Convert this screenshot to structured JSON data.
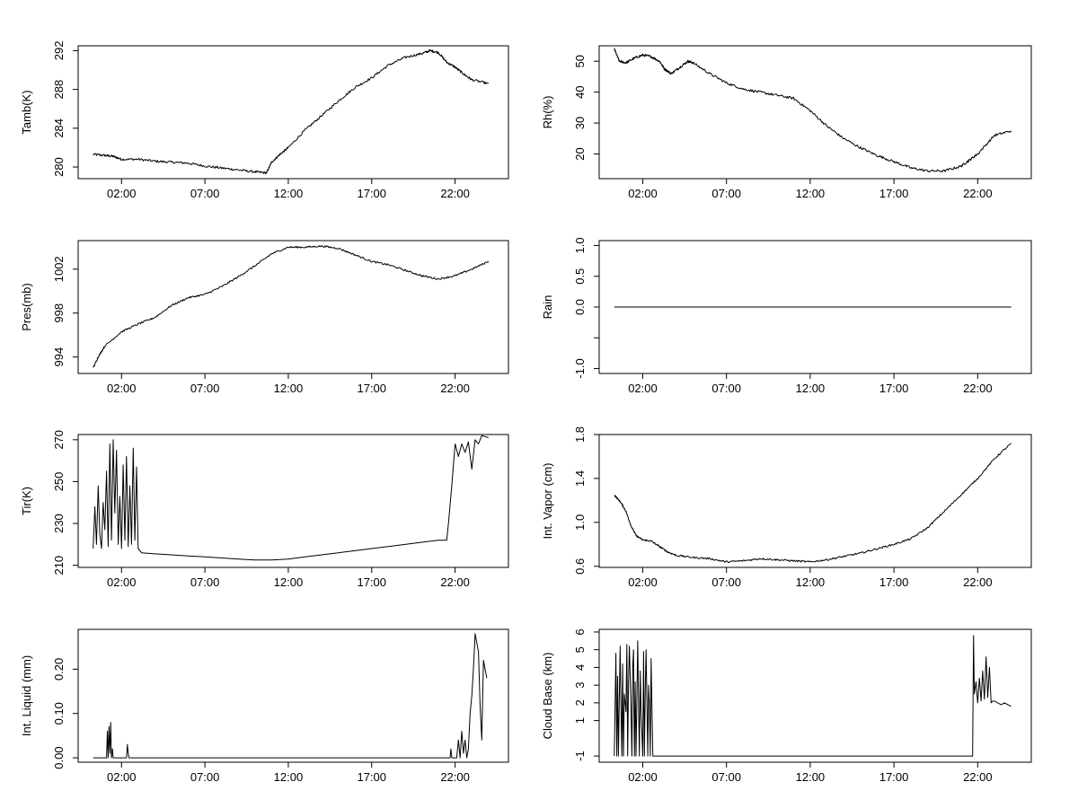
{
  "chart_data": [
    {
      "type": "line",
      "id": "tamb",
      "ylabel": "Tamb(K)",
      "xlim": [
        -0.6,
        25.2
      ],
      "ylim": [
        278.8,
        292.5
      ],
      "xticks": [
        2,
        7,
        12,
        17,
        22
      ],
      "xtick_labels": [
        "02:00",
        "07:00",
        "12:00",
        "17:00",
        "22:00"
      ],
      "yticks": [
        280,
        284,
        288,
        292
      ],
      "ytick_labels": [
        "280",
        "284",
        "288",
        "292"
      ],
      "x": [
        0.3,
        1.0,
        1.5,
        2.0,
        3.0,
        4.0,
        5.0,
        6.0,
        7.0,
        8.0,
        9.0,
        10.0,
        10.7,
        11.0,
        11.5,
        12.0,
        13.0,
        14.0,
        15.0,
        16.0,
        17.0,
        18.0,
        19.0,
        20.0,
        20.5,
        21.0,
        21.5,
        22.0,
        22.5,
        23.0,
        24.0
      ],
      "y": [
        281.3,
        281.2,
        281.1,
        280.8,
        280.8,
        280.6,
        280.5,
        280.4,
        280.1,
        279.9,
        279.7,
        279.5,
        279.4,
        280.5,
        281.3,
        282.0,
        283.8,
        285.3,
        286.8,
        288.2,
        289.2,
        290.5,
        291.3,
        291.7,
        292.0,
        291.8,
        290.8,
        290.3,
        289.6,
        289.0,
        288.6
      ],
      "noise": 0.12
    },
    {
      "type": "line",
      "id": "rh",
      "ylabel": "Rh(%)",
      "xlim": [
        -0.6,
        25.2
      ],
      "ylim": [
        12.0,
        55.0
      ],
      "xticks": [
        2,
        7,
        12,
        17,
        22
      ],
      "xtick_labels": [
        "02:00",
        "07:00",
        "12:00",
        "17:00",
        "22:00"
      ],
      "yticks": [
        20,
        30,
        40,
        50
      ],
      "ytick_labels": [
        "20",
        "30",
        "40",
        "50"
      ],
      "x": [
        0.3,
        0.6,
        1.0,
        1.5,
        2.0,
        2.5,
        3.0,
        3.3,
        3.7,
        4.2,
        4.7,
        5.0,
        6.0,
        7.0,
        8.0,
        9.0,
        10.0,
        11.0,
        12.0,
        13.0,
        14.0,
        15.0,
        16.0,
        17.0,
        18.0,
        19.0,
        20.0,
        21.0,
        21.5,
        22.0,
        23.0,
        24.0
      ],
      "y": [
        54.0,
        50.0,
        49.5,
        51.0,
        52.0,
        51.5,
        50.0,
        47.5,
        46.0,
        48.0,
        50.0,
        49.5,
        46.0,
        43.0,
        41.0,
        40.0,
        39.0,
        38.0,
        34.0,
        29.0,
        25.0,
        22.0,
        19.5,
        17.5,
        15.5,
        14.5,
        14.5,
        16.0,
        18.0,
        20.0,
        26.0,
        27.5
      ],
      "noise": 0.4
    },
    {
      "type": "line",
      "id": "pres",
      "ylabel": "Pres(mb)",
      "xlim": [
        -0.6,
        25.2
      ],
      "ylim": [
        992.5,
        1004.6
      ],
      "xticks": [
        2,
        7,
        12,
        17,
        22
      ],
      "xtick_labels": [
        "02:00",
        "07:00",
        "12:00",
        "17:00",
        "22:00"
      ],
      "yticks": [
        994,
        998,
        1002
      ],
      "ytick_labels": [
        "994",
        "998",
        "1002"
      ],
      "x": [
        0.3,
        0.6,
        1.0,
        2.0,
        3.0,
        4.0,
        5.0,
        6.0,
        7.0,
        8.0,
        9.0,
        10.0,
        11.0,
        12.0,
        13.0,
        14.0,
        15.0,
        16.0,
        17.0,
        18.0,
        19.0,
        20.0,
        21.0,
        22.0,
        23.0,
        24.0
      ],
      "y": [
        993.0,
        994.0,
        995.0,
        996.3,
        997.0,
        997.6,
        998.7,
        999.4,
        999.7,
        1000.4,
        1001.3,
        1002.3,
        1003.4,
        1004.0,
        1004.0,
        1004.1,
        1003.9,
        1003.3,
        1002.7,
        1002.4,
        1001.9,
        1001.4,
        1001.1,
        1001.4,
        1002.0,
        1002.7
      ],
      "noise": 0.08
    },
    {
      "type": "line",
      "id": "rain",
      "ylabel": "Rain",
      "xlim": [
        -0.6,
        25.2
      ],
      "ylim": [
        -1.08,
        1.08
      ],
      "xticks": [
        2,
        7,
        12,
        17,
        22
      ],
      "xtick_labels": [
        "02:00",
        "07:00",
        "12:00",
        "17:00",
        "22:00"
      ],
      "yticks": [
        -1.0,
        -0.5,
        0.0,
        0.5,
        1.0
      ],
      "ytick_labels": [
        "-1.0",
        "",
        "0.0",
        "0.5",
        "1.0"
      ],
      "x": [
        0.3,
        24.0
      ],
      "y": [
        0.0,
        0.0
      ],
      "noise": 0
    },
    {
      "type": "line",
      "id": "tir",
      "ylabel": "Tir(K)",
      "xlim": [
        -0.6,
        25.2
      ],
      "ylim": [
        209.0,
        272.5
      ],
      "xticks": [
        2,
        7,
        12,
        17,
        22
      ],
      "xtick_labels": [
        "02:00",
        "07:00",
        "12:00",
        "17:00",
        "22:00"
      ],
      "yticks": [
        210,
        230,
        250,
        270
      ],
      "ytick_labels": [
        "210",
        "230",
        "250",
        "270"
      ],
      "x": [
        0.3,
        0.4,
        0.5,
        0.6,
        0.7,
        0.8,
        0.9,
        1.0,
        1.1,
        1.2,
        1.3,
        1.4,
        1.5,
        1.6,
        1.7,
        1.8,
        1.9,
        2.0,
        2.1,
        2.2,
        2.3,
        2.4,
        2.5,
        2.6,
        2.7,
        2.8,
        2.9,
        3.0,
        3.2,
        4.0,
        5.0,
        6.0,
        7.0,
        8.0,
        9.0,
        10.0,
        11.0,
        12.0,
        13.0,
        14.0,
        15.0,
        16.0,
        17.0,
        18.0,
        19.0,
        20.0,
        21.0,
        21.5,
        21.6,
        21.8,
        22.0,
        22.2,
        22.4,
        22.6,
        22.8,
        23.0,
        23.2,
        23.4,
        23.6,
        24.0
      ],
      "y": [
        218,
        238,
        220,
        248,
        225,
        218,
        240,
        227,
        255,
        219,
        268,
        222,
        270,
        235,
        265,
        220,
        243,
        218,
        258,
        222,
        262,
        219,
        248,
        220,
        266,
        222,
        257,
        218,
        216,
        215.5,
        215,
        214.5,
        214,
        213.5,
        213,
        212.5,
        212.5,
        213,
        214,
        215,
        216,
        217,
        218,
        219,
        220,
        221,
        222,
        222,
        230,
        248,
        268,
        262,
        268,
        264,
        269,
        256,
        270,
        268,
        272,
        271
      ],
      "noise": 0
    },
    {
      "type": "line",
      "id": "vapor",
      "ylabel": "Int. Vapor (cm)",
      "xlim": [
        -0.6,
        25.2
      ],
      "ylim": [
        0.59,
        1.8
      ],
      "xticks": [
        2,
        7,
        12,
        17,
        22
      ],
      "xtick_labels": [
        "02:00",
        "07:00",
        "12:00",
        "17:00",
        "22:00"
      ],
      "yticks": [
        0.6,
        1.0,
        1.4,
        1.8
      ],
      "ytick_labels": [
        "0.6",
        "1.0",
        "1.4",
        "1.8"
      ],
      "x": [
        0.3,
        0.7,
        1.0,
        1.3,
        1.6,
        2.0,
        2.5,
        3.0,
        3.5,
        4.0,
        5.0,
        6.0,
        7.0,
        8.0,
        9.0,
        10.0,
        11.0,
        12.0,
        13.0,
        14.0,
        15.0,
        16.0,
        17.0,
        18.0,
        19.0,
        20.0,
        21.0,
        22.0,
        23.0,
        24.0
      ],
      "y": [
        1.25,
        1.18,
        1.1,
        0.97,
        0.88,
        0.84,
        0.83,
        0.78,
        0.73,
        0.7,
        0.68,
        0.67,
        0.64,
        0.65,
        0.67,
        0.66,
        0.65,
        0.64,
        0.66,
        0.69,
        0.72,
        0.76,
        0.8,
        0.85,
        0.95,
        1.1,
        1.25,
        1.4,
        1.58,
        1.72
      ],
      "noise": 0.008
    },
    {
      "type": "line",
      "id": "liquid",
      "ylabel": "Int. Liquid (mm)",
      "xlim": [
        -0.6,
        25.2
      ],
      "ylim": [
        -0.01,
        0.29
      ],
      "xticks": [
        2,
        7,
        12,
        17,
        22
      ],
      "xtick_labels": [
        "02:00",
        "07:00",
        "12:00",
        "17:00",
        "22:00"
      ],
      "yticks": [
        0.0,
        0.1,
        0.2
      ],
      "ytick_labels": [
        "0.00",
        "0.10",
        "0.20"
      ],
      "x": [
        0.3,
        1.1,
        1.15,
        1.2,
        1.25,
        1.3,
        1.35,
        1.4,
        1.45,
        1.5,
        1.6,
        2.3,
        2.35,
        2.4,
        2.45,
        21.7,
        21.75,
        21.8,
        22.1,
        22.2,
        22.3,
        22.4,
        22.5,
        22.6,
        22.7,
        22.8,
        22.9,
        23.0,
        23.1,
        23.2,
        23.3,
        23.4,
        23.5,
        23.6,
        23.7,
        23.8,
        23.9
      ],
      "y": [
        0.0,
        0.0,
        0.06,
        0.0,
        0.07,
        0.01,
        0.08,
        0.0,
        0.02,
        0.0,
        0.0,
        0.0,
        0.03,
        0.01,
        0.0,
        0.0,
        0.02,
        0.0,
        0.0,
        0.04,
        0.0,
        0.06,
        0.01,
        0.04,
        0.0,
        0.02,
        0.1,
        0.14,
        0.2,
        0.28,
        0.26,
        0.24,
        0.12,
        0.04,
        0.22,
        0.2,
        0.18
      ],
      "noise": 0
    },
    {
      "type": "line",
      "id": "cloud",
      "ylabel": "Cloud Base (km)",
      "xlim": [
        -0.6,
        25.2
      ],
      "ylim": [
        -1.35,
        6.15
      ],
      "xticks": [
        2,
        7,
        12,
        17,
        22
      ],
      "xtick_labels": [
        "02:00",
        "07:00",
        "12:00",
        "17:00",
        "22:00"
      ],
      "yticks": [
        -1,
        1,
        2,
        3,
        4,
        5,
        6
      ],
      "ytick_labels": [
        "-1",
        "1",
        "2",
        "3",
        "4",
        "5",
        "6"
      ],
      "x": [
        0.3,
        0.35,
        0.4,
        0.45,
        0.5,
        0.55,
        0.65,
        0.7,
        0.75,
        0.8,
        0.85,
        0.9,
        1.0,
        1.05,
        1.1,
        1.15,
        1.2,
        1.3,
        1.35,
        1.4,
        1.45,
        1.5,
        1.55,
        1.6,
        1.7,
        1.75,
        1.8,
        1.85,
        1.9,
        2.0,
        2.05,
        2.1,
        2.15,
        2.2,
        2.3,
        2.35,
        2.4,
        2.45,
        2.5,
        2.55,
        2.6,
        2.65,
        21.7,
        21.75,
        21.8,
        21.9,
        22.0,
        22.1,
        22.2,
        22.3,
        22.4,
        22.5,
        22.6,
        22.7,
        22.8,
        22.9,
        23.0,
        23.2,
        23.4,
        23.6,
        23.8,
        24.0
      ],
      "y": [
        -1,
        1.8,
        4.8,
        -1,
        3.5,
        -1,
        5.2,
        2.0,
        -1,
        4.2,
        -1,
        2.5,
        1.5,
        5.3,
        -1,
        3.0,
        5.2,
        1.8,
        -1,
        4.0,
        5.0,
        -1,
        3.2,
        -1,
        5.5,
        2.2,
        -1,
        3.8,
        1.5,
        -1,
        4.9,
        -1,
        2.8,
        5.0,
        -1,
        3.0,
        2.0,
        -1,
        4.5,
        1.8,
        -1,
        -1,
        -1,
        5.8,
        2.5,
        3.2,
        2.0,
        3.4,
        2.1,
        3.8,
        2.2,
        4.6,
        2.3,
        4.0,
        2.0,
        2.1,
        2.1,
        2.0,
        1.9,
        2.0,
        1.9,
        1.8
      ],
      "noise": 0
    }
  ]
}
